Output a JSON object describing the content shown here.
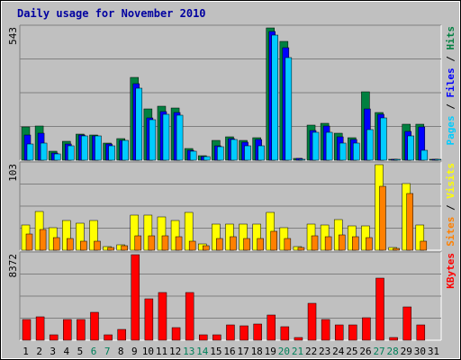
{
  "chart_data": {
    "type": "bar",
    "title": "Daily usage for November 2010",
    "categories": [
      "1",
      "2",
      "3",
      "4",
      "5",
      "6",
      "7",
      "8",
      "9",
      "10",
      "11",
      "12",
      "13",
      "14",
      "15",
      "16",
      "17",
      "18",
      "19",
      "20",
      "21",
      "22",
      "23",
      "24",
      "25",
      "26",
      "27",
      "28",
      "29",
      "30",
      "31"
    ],
    "weekend_days": [
      "6",
      "7",
      "13",
      "14",
      "20",
      "21",
      "27",
      "28"
    ],
    "panels": [
      {
        "id": "pages-files-hits",
        "max_label": "543",
        "ymax": 543,
        "legend": [
          {
            "text": "Pages",
            "color": "#00ccff"
          },
          {
            "text": " / ",
            "color": "#000000"
          },
          {
            "text": "Files",
            "color": "#0000ff"
          },
          {
            "text": " / ",
            "color": "#000000"
          },
          {
            "text": "Hits",
            "color": "#008040"
          }
        ],
        "series": [
          {
            "name": "Hits",
            "color": "#008040",
            "values": [
              138,
              140,
              36,
              78,
              108,
              105,
              70,
              90,
              340,
              210,
              223,
              215,
              48,
              20,
              83,
              96,
              80,
              92,
              543,
              488,
              8,
              145,
              150,
              110,
              93,
              282,
              195,
              3,
              146,
              147,
              3
            ]
          },
          {
            "name": "Files",
            "color": "#0000ff",
            "values": [
              105,
              112,
              28,
              68,
              103,
              100,
              65,
              80,
              315,
              175,
              200,
              195,
              40,
              16,
              60,
              90,
              75,
              85,
              530,
              460,
              6,
              122,
              140,
              95,
              85,
              210,
              190,
              2,
              120,
              135,
              2
            ]
          },
          {
            "name": "Pages",
            "color": "#00ccff",
            "values": [
              65,
              70,
              25,
              60,
              100,
              98,
              60,
              80,
              295,
              165,
              190,
              185,
              38,
              15,
              55,
              85,
              60,
              60,
              515,
              420,
              5,
              115,
              115,
              70,
              70,
              125,
              175,
              2,
              100,
              42,
              2
            ]
          }
        ]
      },
      {
        "id": "visits-sites",
        "max_label": "103",
        "ymax": 103,
        "legend": [
          {
            "text": "Sites",
            "color": "#ff8000"
          },
          {
            "text": " / ",
            "color": "#000000"
          },
          {
            "text": "Visits",
            "color": "#ffff00"
          }
        ],
        "series": [
          {
            "name": "Visits",
            "color": "#ffff00",
            "values": [
              30,
              47,
              27,
              36,
              32,
              36,
              4,
              6,
              42,
              42,
              40,
              36,
              45,
              8,
              31,
              31,
              31,
              31,
              45,
              27,
              4,
              31,
              30,
              37,
              29,
              29,
              103,
              3,
              80,
              30,
              0
            ]
          },
          {
            "name": "Sites",
            "color": "#ff8000",
            "values": [
              20,
              25,
              15,
              14,
              11,
              11,
              3,
              5,
              17,
              17,
              17,
              16,
              11,
              5,
              14,
              16,
              14,
              14,
              23,
              14,
              3,
              17,
              16,
              18,
              16,
              15,
              77,
              2,
              68,
              11,
              0
            ]
          }
        ]
      },
      {
        "id": "kbytes",
        "max_label": "8372",
        "ymax": 8372,
        "legend": [
          {
            "text": "KBytes",
            "color": "#ff0000"
          }
        ],
        "series": [
          {
            "name": "KBytes",
            "color": "#ff0000",
            "values": [
              2020,
              2280,
              560,
              2060,
              2020,
              2700,
              550,
              1030,
              8372,
              4040,
              4670,
              1200,
              4670,
              500,
              500,
              1490,
              1440,
              1620,
              2500,
              1300,
              300,
              3600,
              2020,
              1480,
              1540,
              2200,
              6100,
              230,
              3300,
              1530,
              0
            ]
          }
        ]
      }
    ]
  }
}
